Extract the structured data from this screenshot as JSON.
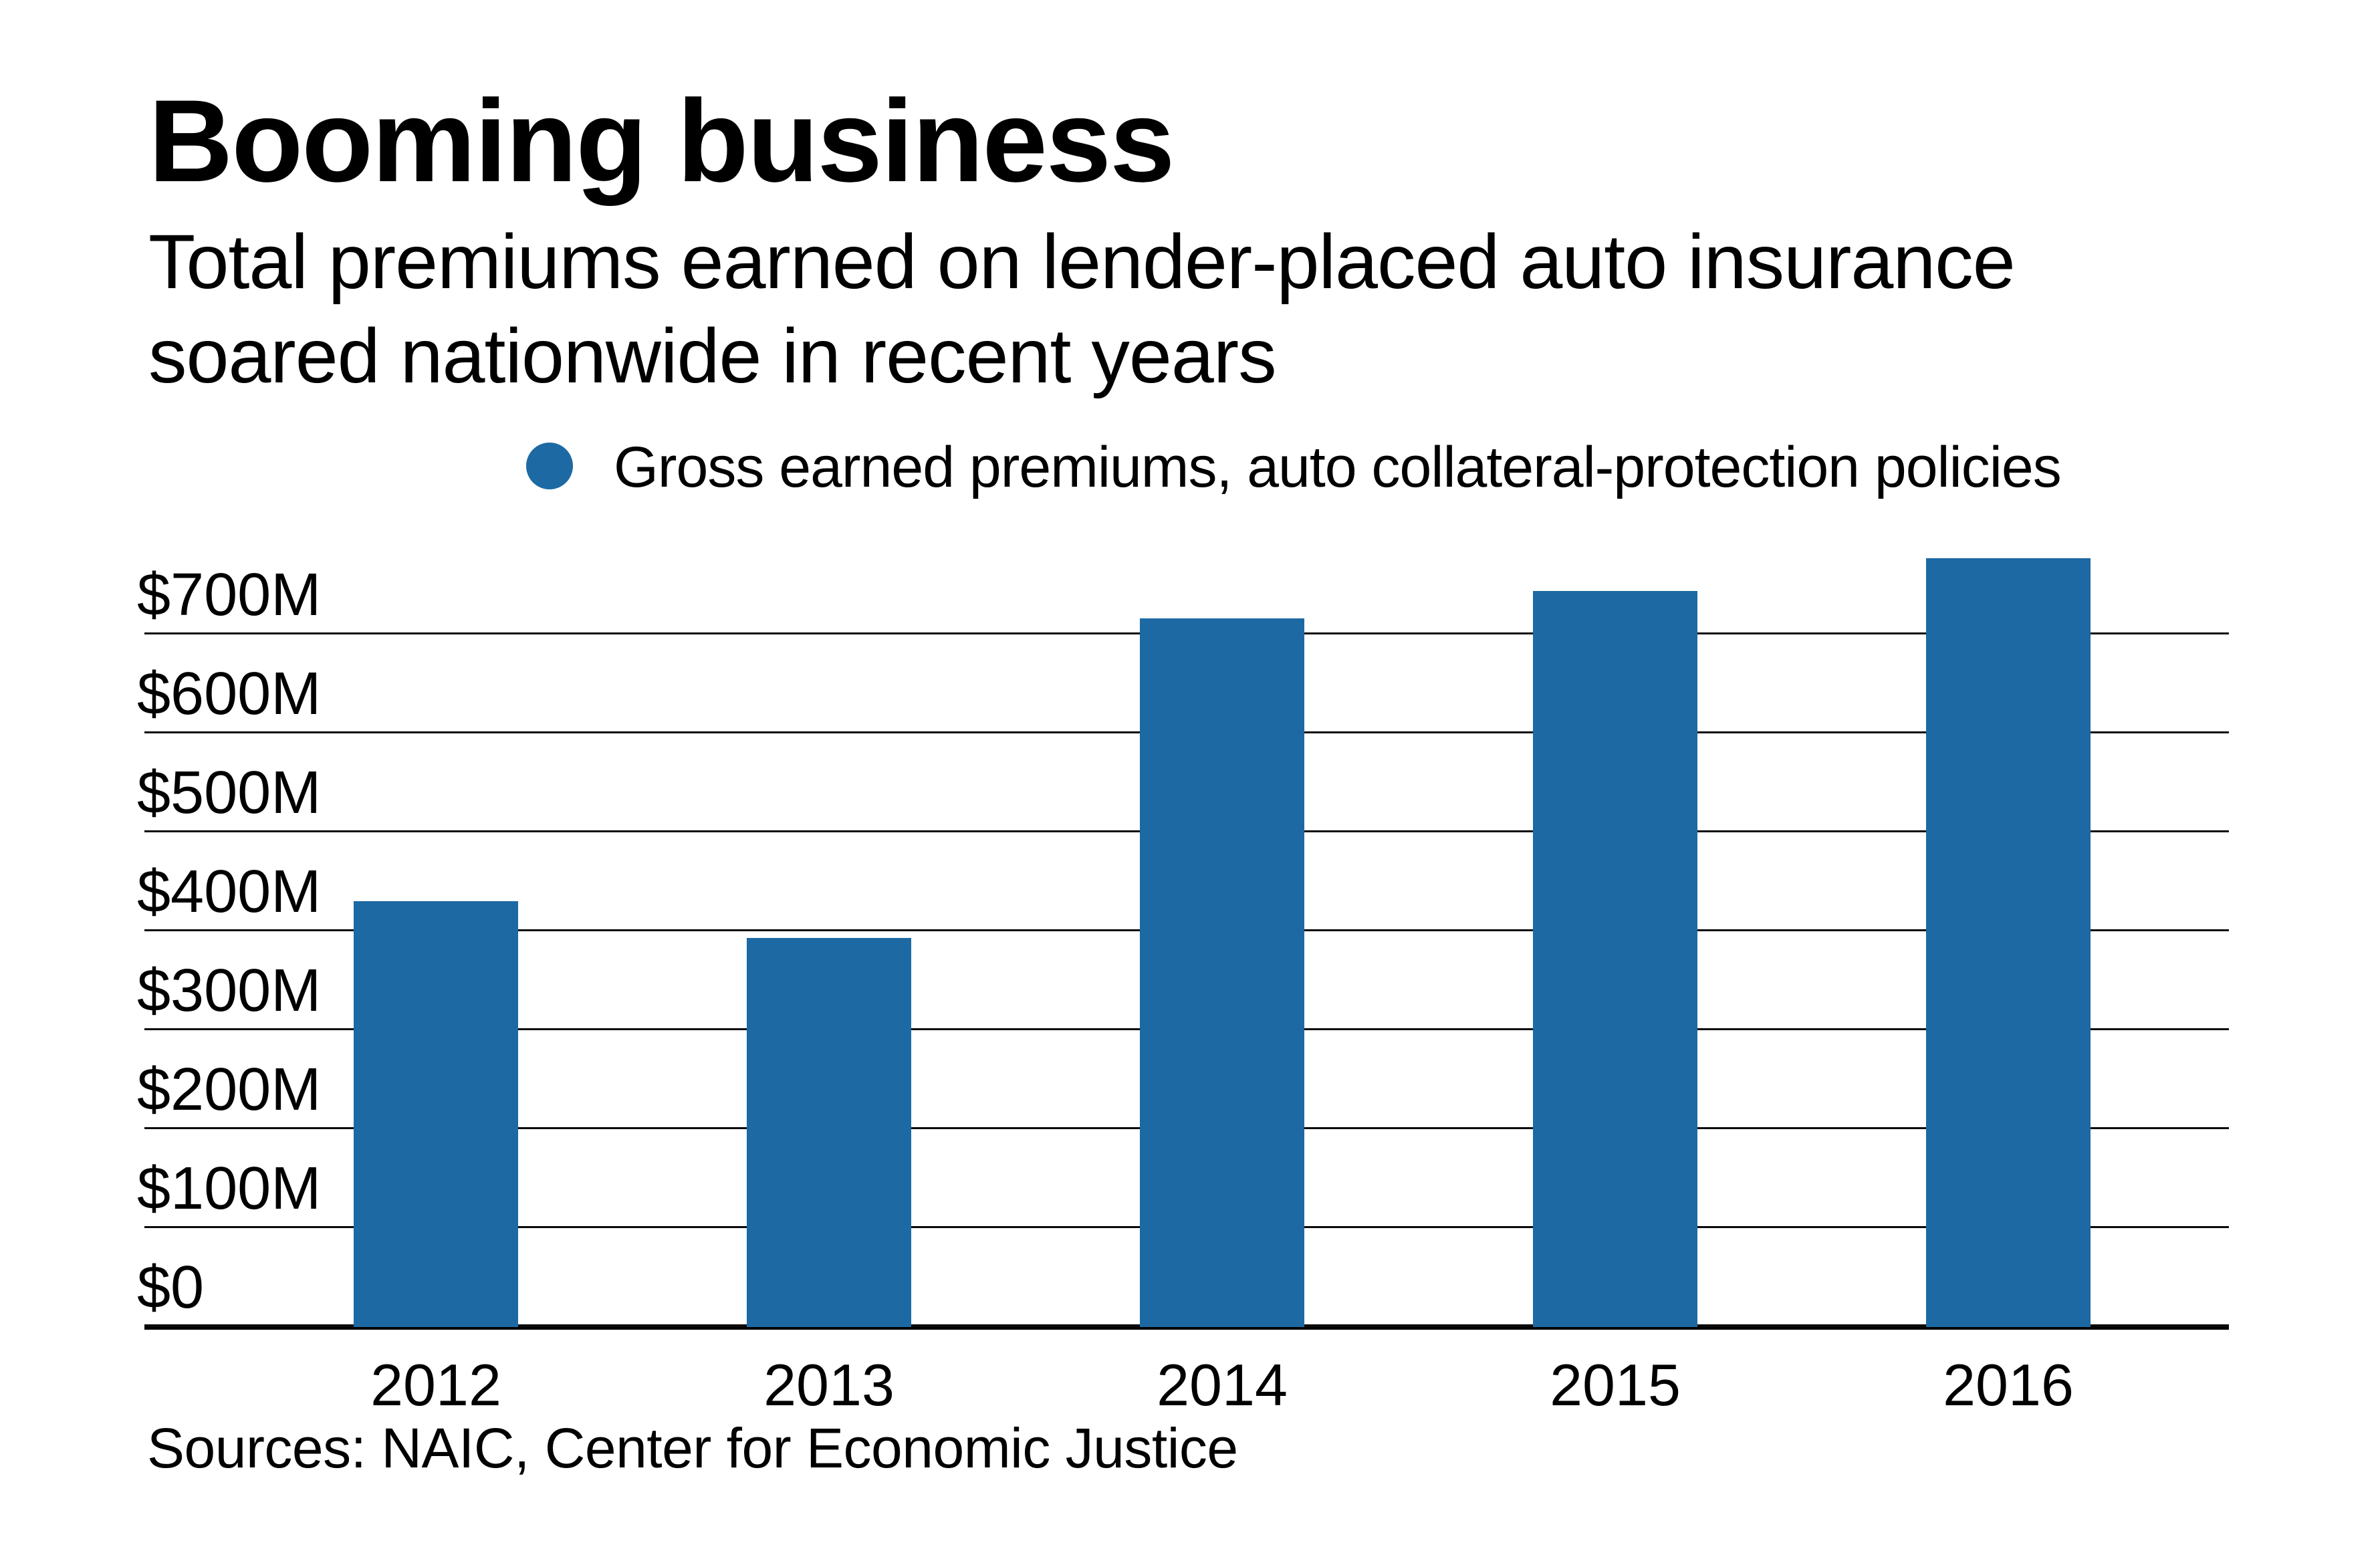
{
  "header": {
    "title": "Booming business",
    "subtitle_line1": "Total premiums earned on lender-placed auto insurance",
    "subtitle_line2": "soared nationwide in recent years"
  },
  "legend": {
    "label": "Gross earned premiums, auto collateral-protection policies",
    "marker_color": "#1c69a3"
  },
  "chart_data": {
    "type": "bar",
    "title": "Booming business",
    "subtitle": "Total premiums earned on lender-placed auto insurance soared nationwide in recent years",
    "categories": [
      "2012",
      "2013",
      "2014",
      "2015",
      "2016"
    ],
    "values": [
      430,
      393,
      716,
      744,
      777
    ],
    "series_name": "Gross earned premiums, auto collateral-protection policies",
    "unit": "USD millions (values estimated from gridlines)",
    "xlabel": "",
    "ylabel": "",
    "ylim": [
      0,
      787
    ],
    "y_ticks": [
      {
        "value": 0,
        "label": "$0"
      },
      {
        "value": 100,
        "label": "$100M"
      },
      {
        "value": 200,
        "label": "$200M"
      },
      {
        "value": 300,
        "label": "$300M"
      },
      {
        "value": 400,
        "label": "$400M"
      },
      {
        "value": 500,
        "label": "$500M"
      },
      {
        "value": 600,
        "label": "$600M"
      },
      {
        "value": 700,
        "label": "$700M"
      }
    ],
    "grid": "horizontal",
    "legend_position": "top",
    "bar_color": "#1c69a3",
    "gridline_color": "#0a0a0a",
    "baseline_color": "#000000"
  },
  "source_note": "Sources: NAIC, Center for Economic Justice"
}
